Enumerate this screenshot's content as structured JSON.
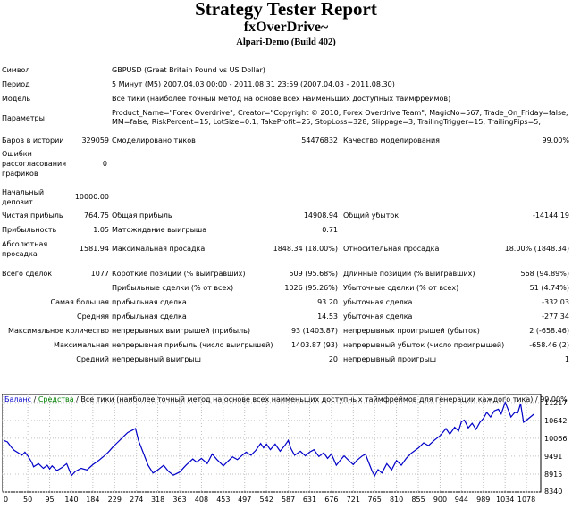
{
  "header": {
    "title": "Strategy Tester Report",
    "expert": "fxOverDrive~",
    "server": "Alpari-Demo (Build 402)"
  },
  "info": {
    "symbol_label": "Символ",
    "symbol_value": "GBPUSD (Great Britain Pound vs US Dollar)",
    "period_label": "Период",
    "period_value": "5 Минут (M5) 2007.04.03 00:00 - 2011.08.31 23:59 (2007.04.03 - 2011.08.30)",
    "model_label": "Модель",
    "model_value": "Все тики (наиболее точный метод на основе всех наименьших доступных таймфреймов)",
    "params_label": "Параметры",
    "params_line1": "Product_Name=\"Forex Overdrive\"; Creator=\"Copyright © 2010, Forex Overdrive Team\"; MagicNo=567; Trade_On_Friday=false;",
    "params_line2": "MM=false; RiskPercent=15; LotSize=0.1; TakeProfit=25; StopLoss=328; Slippage=3; TrailingTrigger=15; TrailingPips=5;"
  },
  "stats": {
    "bars_label": "Баров в истории",
    "bars_value": "329059",
    "ticks_label": "Смоделировано тиков",
    "ticks_value": "54476832",
    "quality_label": "Качество моделирования",
    "quality_value": "99.00%",
    "errors_label_1": "Ошибки",
    "errors_label_2": "рассогласования",
    "errors_label_3": "графиков",
    "errors_value": "0",
    "deposit_label_1": "Начальный",
    "deposit_label_2": "депозит",
    "deposit_value": "10000.00",
    "net_label": "Чистая прибыль",
    "net_value": "764.75",
    "gross_profit_label": "Общая прибыль",
    "gross_profit_value": "14908.94",
    "gross_loss_label": "Общий убыток",
    "gross_loss_value": "-14144.19",
    "pf_label": "Прибыльность",
    "pf_value": "1.05",
    "payoff_label": "Матожидание выигрыша",
    "payoff_value": "0.71",
    "abs_dd_label_1": "Абсолютная",
    "abs_dd_label_2": "просадка",
    "abs_dd_value": "1581.94",
    "max_dd_label": "Максимальная просадка",
    "max_dd_value": "1848.34 (18.00%)",
    "rel_dd_label": "Относительная просадка",
    "rel_dd_value": "18.00% (1848.34)",
    "trades_label": "Всего сделок",
    "trades_value": "1077",
    "short_label": "Короткие позиции (% выигравших)",
    "short_value": "509 (95.68%)",
    "long_label": "Длинные позиции (% выигравших)",
    "long_value": "568 (94.89%)",
    "prof_trades_label": "Прибыльные сделки (% от всех)",
    "prof_trades_value": "1026 (95.26%)",
    "loss_trades_label": "Убыточные сделки (% от всех)",
    "loss_trades_value": "51 (4.74%)",
    "largest_label": "Самая большая",
    "largest_profit_label": "прибыльная сделка",
    "largest_profit_value": "93.20",
    "largest_loss_label": "убыточная сделка",
    "largest_loss_value": "-332.03",
    "average_label": "Средняя",
    "average_profit_label": "прибыльная сделка",
    "average_profit_value": "14.53",
    "average_loss_label": "убыточная сделка",
    "average_loss_value": "-277.34",
    "maxcount_label": "Максимальное количество",
    "maxcons_wins_label": "непрерывных выигрышей (прибыль)",
    "maxcons_wins_value": "93 (1403.87)",
    "maxcons_losses_label": "непрерывных проигрышей (убыток)",
    "maxcons_losses_value": "2 (-658.46)",
    "maximal_label": "Максимальная",
    "maxcons_profit_label": "непрерывная прибыль (число выигрышей)",
    "maxcons_profit_value": "1403.87 (93)",
    "maxcons_loss_label": "непрерывный убыток (число проигрышей)",
    "maxcons_loss_value": "-658.46 (2)",
    "avgcons_label": "Средний",
    "avgcons_wins_label": "непрерывный выигрыш",
    "avgcons_wins_value": "20",
    "avgcons_losses_label": "непрерывный проигрыш",
    "avgcons_losses_value": "1"
  },
  "chart_data": {
    "type": "line",
    "legend": {
      "balance": "Баланс",
      "sep1": " / ",
      "equity": "Средства",
      "rest": " / Все тики (наиболее точный метод на основе всех наименьших доступных таймфреймов для генерации каждого тика) / 99.00%"
    },
    "colors": {
      "balance": "#0000c8",
      "equity": "#008000",
      "grid": "#c0c0c0"
    },
    "ylim": [
      8340,
      11500
    ],
    "xlim": [
      0,
      1100
    ],
    "y_ticks": [
      "11217",
      "10642",
      "10066",
      "9491",
      "8915",
      "8340"
    ],
    "x_ticks": [
      "0",
      "50",
      "95",
      "140",
      "184",
      "229",
      "274",
      "318",
      "363",
      "408",
      "453",
      "497",
      "542",
      "587",
      "631",
      "676",
      "721",
      "765",
      "810",
      "855",
      "900",
      "944",
      "989",
      "1034",
      "1078"
    ],
    "series": [
      {
        "values": [
          [
            0,
            10000
          ],
          [
            8,
            9950
          ],
          [
            16,
            9780
          ],
          [
            22,
            9680
          ],
          [
            30,
            9600
          ],
          [
            38,
            9520
          ],
          [
            44,
            9620
          ],
          [
            50,
            9500
          ],
          [
            58,
            9300
          ],
          [
            62,
            9150
          ],
          [
            72,
            9250
          ],
          [
            82,
            9100
          ],
          [
            90,
            9200
          ],
          [
            95,
            9080
          ],
          [
            100,
            9180
          ],
          [
            110,
            9030
          ],
          [
            120,
            9120
          ],
          [
            130,
            9250
          ],
          [
            140,
            8870
          ],
          [
            148,
            9000
          ],
          [
            160,
            9100
          ],
          [
            172,
            9050
          ],
          [
            184,
            9220
          ],
          [
            196,
            9350
          ],
          [
            206,
            9480
          ],
          [
            216,
            9620
          ],
          [
            226,
            9800
          ],
          [
            236,
            9950
          ],
          [
            246,
            10100
          ],
          [
            256,
            10250
          ],
          [
            266,
            10330
          ],
          [
            272,
            10380
          ],
          [
            278,
            10000
          ],
          [
            288,
            9600
          ],
          [
            298,
            9200
          ],
          [
            308,
            8950
          ],
          [
            318,
            9050
          ],
          [
            330,
            9200
          ],
          [
            340,
            9000
          ],
          [
            350,
            8880
          ],
          [
            363,
            8980
          ],
          [
            376,
            9200
          ],
          [
            390,
            9400
          ],
          [
            398,
            9300
          ],
          [
            408,
            9420
          ],
          [
            420,
            9250
          ],
          [
            430,
            9560
          ],
          [
            440,
            9380
          ],
          [
            453,
            9180
          ],
          [
            462,
            9320
          ],
          [
            472,
            9470
          ],
          [
            482,
            9380
          ],
          [
            492,
            9520
          ],
          [
            500,
            9620
          ],
          [
            510,
            9520
          ],
          [
            520,
            9680
          ],
          [
            530,
            9900
          ],
          [
            536,
            9760
          ],
          [
            542,
            9880
          ],
          [
            550,
            9700
          ],
          [
            560,
            9880
          ],
          [
            570,
            9650
          ],
          [
            580,
            9840
          ],
          [
            587,
            10000
          ],
          [
            592,
            9750
          ],
          [
            600,
            9520
          ],
          [
            612,
            9650
          ],
          [
            622,
            9500
          ],
          [
            631,
            9620
          ],
          [
            640,
            9700
          ],
          [
            650,
            9480
          ],
          [
            660,
            9600
          ],
          [
            668,
            9420
          ],
          [
            676,
            9560
          ],
          [
            686,
            9200
          ],
          [
            694,
            9360
          ],
          [
            702,
            9500
          ],
          [
            710,
            9380
          ],
          [
            721,
            9220
          ],
          [
            728,
            9350
          ],
          [
            738,
            9480
          ],
          [
            746,
            9560
          ],
          [
            752,
            9320
          ],
          [
            760,
            9000
          ],
          [
            765,
            8860
          ],
          [
            772,
            9060
          ],
          [
            780,
            8950
          ],
          [
            790,
            9250
          ],
          [
            800,
            9050
          ],
          [
            810,
            9350
          ],
          [
            820,
            9200
          ],
          [
            830,
            9420
          ],
          [
            840,
            9580
          ],
          [
            855,
            9750
          ],
          [
            866,
            9920
          ],
          [
            876,
            9830
          ],
          [
            888,
            10000
          ],
          [
            900,
            10150
          ],
          [
            912,
            10380
          ],
          [
            920,
            10200
          ],
          [
            930,
            10420
          ],
          [
            938,
            10300
          ],
          [
            944,
            10600
          ],
          [
            950,
            10650
          ],
          [
            958,
            10400
          ],
          [
            966,
            10550
          ],
          [
            974,
            10350
          ],
          [
            982,
            10580
          ],
          [
            989,
            10700
          ],
          [
            996,
            10900
          ],
          [
            1004,
            10750
          ],
          [
            1012,
            10950
          ],
          [
            1020,
            11000
          ],
          [
            1026,
            10850
          ],
          [
            1034,
            11220
          ],
          [
            1040,
            11000
          ],
          [
            1046,
            10750
          ],
          [
            1054,
            10900
          ],
          [
            1060,
            10880
          ],
          [
            1066,
            11180
          ],
          [
            1072,
            10580
          ],
          [
            1078,
            10650
          ],
          [
            1086,
            10750
          ],
          [
            1094,
            10850
          ]
        ]
      }
    ]
  }
}
